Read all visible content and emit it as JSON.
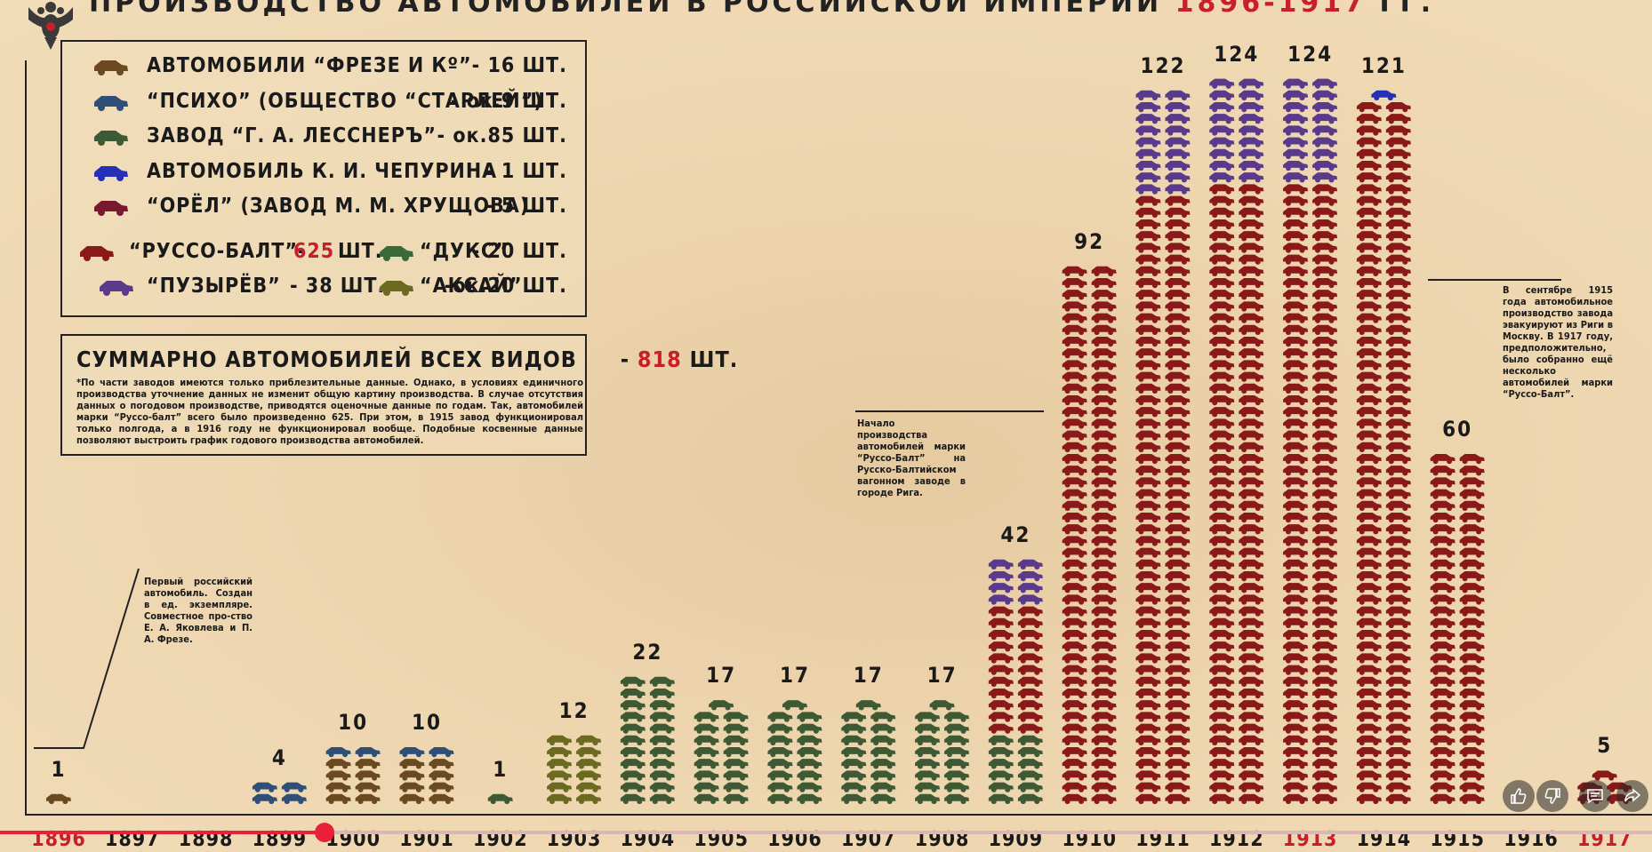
{
  "header": {
    "title_main": "ПРОИЗВОДСТВО АВТОМОБИЛЕЙ В РОССИЙСКОЙ ИМПЕРИИ",
    "title_years": "1896-1917",
    "title_suffix": "ГГ."
  },
  "legend": [
    {
      "label": "АВТОМОБИЛИ “ФРЕЗЕ И Кº”",
      "count": "- 16 ШТ.",
      "color": "#6b4a22"
    },
    {
      "label": "“ПСИХО” (ОБЩЕСТВО “СТАРЛЕЙ”)",
      "count": "- ок.9 ШТ.",
      "color": "#2f4f78"
    },
    {
      "label": "ЗАВОД “Г. А. ЛЕССНЕРЪ”",
      "count": "- ок.85 ШТ.",
      "color": "#3e5a34"
    },
    {
      "label": "АВТОМОБИЛЬ К. И. ЧЕПУРИНА",
      "count": "- 1 ШТ.",
      "color": "#2530b8"
    },
    {
      "label": "“ОРЁЛ” (ЗАВОД М. М. ХРУЩОВА)",
      "count": "- 5 ШТ.",
      "color": "#7a1830"
    }
  ],
  "legend_pairs": [
    {
      "label_a": "“РУССО-БАЛТ”-",
      "count_a": "625",
      "unit_a": "ШТ.",
      "color_a": "#8a1a1a",
      "label_b": "“ДУКС”",
      "count_b": "- 20 ШТ.",
      "color_b": "#3a6a3a"
    },
    {
      "label_a": "“ПУЗЫРЁВ”",
      "count_a": "- 38 ШТ.",
      "unit_a": "",
      "color_a": "#5a3a8a",
      "label_b": "“АКСАЙ”",
      "count_b": "-ок.20 ШТ.",
      "color_b": "#6a6a20"
    }
  ],
  "summary": {
    "title": "СУММАРНО АВТОМОБИЛЕЙ ВСЕХ ВИДОВ",
    "dash": "-",
    "total": "818",
    "unit": "ШТ.",
    "note": "*По части заводов имеются только приблезительные данные. Однако, в условиях единичного производства уточнение данных не изменит общую картину производства. В случае отсутствия данных о погодовом производстве, приводятся оценочные данные по годам. Так, автомобилей марки “Руссо-балт” всего было произведенно 625. При этом, в 1915 завод функционировал только полгода, а в 1916 году не функционировал вообще. Подобные косвенные данные позволяют выстроить график годового производства автомобилей."
  },
  "annotations": {
    "first_car": "Первый российский автомобиль. Создан в ед. экземпляре. Совместное про-ство Е. А. Яковлева и П. А. Фрезе.",
    "russo_balt_start": "Начало производства автомобилей марки “Руссо-Балт” на Русско-Балтийском вагонном заводе в городе Рига.",
    "evacuation": "В сентябре 1915 года автомобильное производство завода эвакуируют из Риги в Москву. В 1917 году, предположительно, было собранно ещё несколько автомобилей марки “Руссо-Балт”."
  },
  "chart_data": {
    "type": "bar",
    "title": "ПРОИЗВОДСТВО АВТОМОБИЛЕЙ В РОССИЙСКОЙ ИМПЕРИИ 1896-1917 ГГ.",
    "categories": [
      "1896",
      "1897",
      "1898",
      "1899",
      "1900",
      "1901",
      "1902",
      "1903",
      "1904",
      "1905",
      "1906",
      "1907",
      "1908",
      "1909",
      "1910",
      "1911",
      "1912",
      "1913",
      "1914",
      "1915",
      "1916",
      "1917"
    ],
    "values": [
      1,
      0,
      0,
      4,
      10,
      10,
      1,
      12,
      22,
      17,
      17,
      17,
      17,
      42,
      92,
      122,
      124,
      124,
      121,
      60,
      0,
      5
    ],
    "value_labels": [
      "1",
      "",
      "",
      "4",
      "10",
      "10",
      "1",
      "12",
      "22",
      "17",
      "17",
      "17",
      "17",
      "42",
      "92",
      "122",
      "124",
      "124",
      "121",
      "60",
      "",
      "5"
    ],
    "highlight_years": [
      "1896",
      "1913",
      "1917"
    ],
    "highlight_color": "#c8202a",
    "stack_colors": [
      "#6b4a22",
      "#2f4f78",
      "#3e5a34",
      "#6a6a20",
      "#8a1a1a",
      "#5a3a8a",
      "#2530b8"
    ],
    "units_per_icon": 1
  }
}
